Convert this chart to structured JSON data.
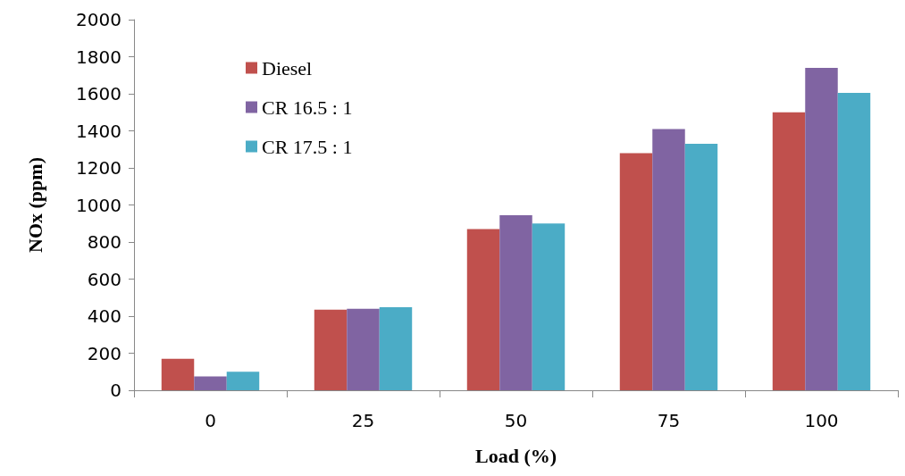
{
  "chart_data": {
    "type": "bar",
    "xlabel": "Load (%)",
    "ylabel": "NOx (ppm)",
    "categories": [
      "0",
      "25",
      "50",
      "75",
      "100"
    ],
    "series": [
      {
        "name": "Diesel",
        "color": "#c0504d",
        "values": [
          170,
          435,
          870,
          1280,
          1500
        ]
      },
      {
        "name": "CR 16.5 : 1",
        "color": "#8064a2",
        "values": [
          75,
          440,
          945,
          1410,
          1740
        ]
      },
      {
        "name": "CR 17.5 : 1",
        "color": "#4bacc6",
        "values": [
          100,
          448,
          900,
          1330,
          1605
        ]
      }
    ],
    "ylim": [
      0,
      2000
    ],
    "yticks": [
      0,
      200,
      400,
      600,
      800,
      1000,
      1200,
      1400,
      1600,
      1800,
      2000
    ],
    "grid": false,
    "legend": "top left"
  }
}
